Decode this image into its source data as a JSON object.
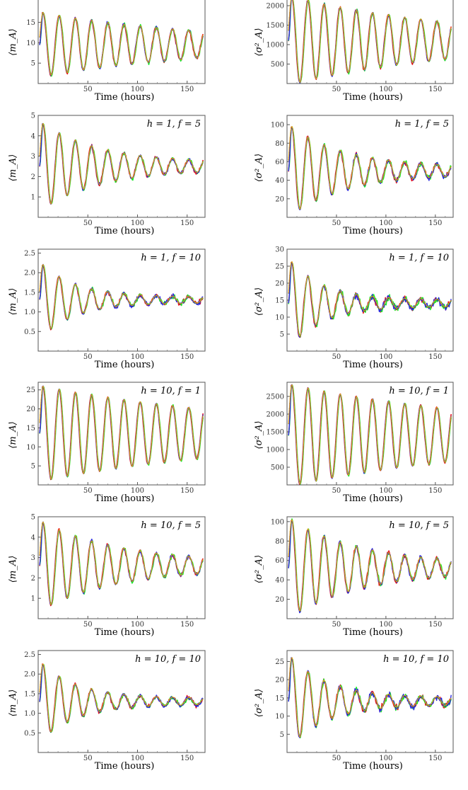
{
  "colors": {
    "red": "#e8141e",
    "green": "#1fe82e",
    "blue": "#2a2ae0",
    "black": "#111111",
    "orange": "#e0a21a"
  },
  "chart_data": [
    {
      "type": "line",
      "annotation": "",
      "xlabel": "Time (hours)",
      "ylabel": "⟨m_A⟩",
      "xlim": [
        0,
        168
      ],
      "ylim": [
        0,
        21
      ],
      "xticks": [
        50,
        100,
        150
      ],
      "yticks": [
        5,
        10,
        15,
        20
      ],
      "ytick_labels": [
        "5",
        "10",
        "15",
        "20"
      ],
      "mean": 9.5,
      "amp0": 7.5,
      "decay": 0.0062,
      "period": 16.3,
      "noise": 0.4,
      "series": [
        {
          "color": "red"
        },
        {
          "color": "green"
        },
        {
          "color": "blue"
        },
        {
          "color": "black"
        },
        {
          "color": "orange"
        }
      ]
    },
    {
      "type": "line",
      "annotation": "",
      "xlabel": "Time (hours)",
      "ylabel": "⟨σ²_A⟩",
      "xlim": [
        0,
        168
      ],
      "ylim": [
        0,
        2200
      ],
      "xticks": [
        50,
        100,
        150
      ],
      "yticks": [
        500,
        1000,
        1500,
        2000
      ],
      "ytick_labels": [
        "500",
        "1000",
        "1500",
        "2000"
      ],
      "mean": 1100,
      "amp0": 1080,
      "decay": 0.0062,
      "period": 16.3,
      "noise": 40,
      "series": [
        {
          "color": "red"
        },
        {
          "color": "green"
        },
        {
          "color": "blue"
        },
        {
          "color": "black"
        },
        {
          "color": "orange"
        }
      ]
    },
    {
      "type": "line",
      "annotation": "h = 1, f = 5",
      "xlabel": "Time (hours)",
      "ylabel": "⟨m_A⟩",
      "xlim": [
        0,
        168
      ],
      "ylim": [
        0,
        5
      ],
      "xticks": [
        50,
        100,
        150
      ],
      "yticks": [
        1,
        2,
        3,
        4,
        5
      ],
      "ytick_labels": [
        "1",
        "2",
        "3",
        "4",
        "5"
      ],
      "mean": 2.5,
      "amp0": 2.1,
      "decay": 0.017,
      "period": 16.3,
      "noise": 0.08,
      "series": [
        {
          "color": "red"
        },
        {
          "color": "green"
        },
        {
          "color": "blue"
        },
        {
          "color": "black"
        },
        {
          "color": "orange"
        }
      ]
    },
    {
      "type": "line",
      "annotation": "h = 1, f = 5",
      "xlabel": "Time (hours)",
      "ylabel": "⟨σ²_A⟩",
      "xlim": [
        0,
        168
      ],
      "ylim": [
        0,
        110
      ],
      "xticks": [
        50,
        100,
        150
      ],
      "yticks": [
        20,
        40,
        60,
        80,
        100
      ],
      "ytick_labels": [
        "20",
        "40",
        "60",
        "80",
        "100"
      ],
      "mean": 50,
      "amp0": 48,
      "decay": 0.018,
      "period": 16.3,
      "noise": 2.5,
      "series": [
        {
          "color": "red"
        },
        {
          "color": "green"
        },
        {
          "color": "blue"
        },
        {
          "color": "black"
        },
        {
          "color": "orange"
        }
      ]
    },
    {
      "type": "line",
      "annotation": "h = 1, f = 10",
      "xlabel": "Time (hours)",
      "ylabel": "⟨m_A⟩",
      "xlim": [
        0,
        168
      ],
      "ylim": [
        0,
        2.6
      ],
      "xticks": [
        50,
        100,
        150
      ],
      "yticks": [
        0.5,
        1.0,
        1.5,
        2.0,
        2.5
      ],
      "ytick_labels": [
        "0.5",
        "1.0",
        "1.5",
        "2.0",
        "2.5"
      ],
      "mean": 1.3,
      "amp0": 0.95,
      "decay": 0.028,
      "period": 16.3,
      "noise": 0.05,
      "series": [
        {
          "color": "red"
        },
        {
          "color": "green"
        },
        {
          "color": "blue"
        },
        {
          "color": "black"
        },
        {
          "color": "orange"
        }
      ]
    },
    {
      "type": "line",
      "annotation": "h = 1, f = 10",
      "xlabel": "Time (hours)",
      "ylabel": "⟨σ²_A⟩",
      "xlim": [
        0,
        168
      ],
      "ylim": [
        0,
        30
      ],
      "xticks": [
        50,
        100,
        150
      ],
      "yticks": [
        5,
        10,
        15,
        20,
        25,
        30
      ],
      "ytick_labels": [
        "5",
        "10",
        "15",
        "20",
        "25",
        "30"
      ],
      "mean": 14,
      "amp0": 13,
      "decay": 0.03,
      "period": 16.3,
      "noise": 0.9,
      "series": [
        {
          "color": "red"
        },
        {
          "color": "green"
        },
        {
          "color": "blue"
        },
        {
          "color": "black"
        },
        {
          "color": "orange"
        }
      ]
    },
    {
      "type": "line",
      "annotation": "h = 10, f = 1",
      "xlabel": "Time (hours)",
      "ylabel": "⟨m_A⟩",
      "xlim": [
        0,
        168
      ],
      "ylim": [
        0,
        27
      ],
      "xticks": [
        50,
        100,
        150
      ],
      "yticks": [
        5,
        10,
        15,
        20,
        25
      ],
      "ytick_labels": [
        "5",
        "10",
        "15",
        "20",
        "25"
      ],
      "mean": 13.5,
      "amp0": 11.8,
      "decay": 0.0045,
      "period": 16.3,
      "noise": 0.25,
      "series": [
        {
          "color": "red"
        },
        {
          "color": "green"
        },
        {
          "color": "blue"
        },
        {
          "color": "black"
        },
        {
          "color": "orange"
        }
      ]
    },
    {
      "type": "line",
      "annotation": "h = 10, f = 1",
      "xlabel": "Time (hours)",
      "ylabel": "⟨σ²_A⟩",
      "xlim": [
        0,
        168
      ],
      "ylim": [
        0,
        2900
      ],
      "xticks": [
        50,
        100,
        150
      ],
      "yticks": [
        500,
        1000,
        1500,
        2000,
        2500
      ],
      "ytick_labels": [
        "500",
        "1000",
        "1500",
        "2000",
        "2500"
      ],
      "mean": 1400,
      "amp0": 1350,
      "decay": 0.0045,
      "period": 16.3,
      "noise": 30,
      "series": [
        {
          "color": "red"
        },
        {
          "color": "green"
        },
        {
          "color": "blue"
        },
        {
          "color": "black"
        },
        {
          "color": "orange"
        }
      ]
    },
    {
      "type": "line",
      "annotation": "h = 10, f = 5",
      "xlabel": "Time (hours)",
      "ylabel": "⟨m_A⟩",
      "xlim": [
        0,
        168
      ],
      "ylim": [
        0,
        5
      ],
      "xticks": [
        50,
        100,
        150
      ],
      "yticks": [
        1,
        2,
        3,
        4,
        5
      ],
      "ytick_labels": [
        "1",
        "2",
        "3",
        "4",
        "5"
      ],
      "mean": 2.6,
      "amp0": 2.1,
      "decay": 0.013,
      "period": 16.3,
      "noise": 0.09,
      "series": [
        {
          "color": "red"
        },
        {
          "color": "green"
        },
        {
          "color": "blue"
        },
        {
          "color": "black"
        },
        {
          "color": "orange"
        }
      ]
    },
    {
      "type": "line",
      "annotation": "h = 10, f = 5",
      "xlabel": "Time (hours)",
      "ylabel": "⟨σ²_A⟩",
      "xlim": [
        0,
        168
      ],
      "ylim": [
        0,
        105
      ],
      "xticks": [
        50,
        100,
        150
      ],
      "yticks": [
        20,
        40,
        60,
        80,
        100
      ],
      "ytick_labels": [
        "20",
        "40",
        "60",
        "80",
        "100"
      ],
      "mean": 52,
      "amp0": 49,
      "decay": 0.014,
      "period": 16.3,
      "noise": 2.5,
      "series": [
        {
          "color": "red"
        },
        {
          "color": "green"
        },
        {
          "color": "blue"
        },
        {
          "color": "black"
        },
        {
          "color": "orange"
        }
      ]
    },
    {
      "type": "line",
      "annotation": "h = 10, f = 10",
      "xlabel": "Time (hours)",
      "ylabel": "⟨m_A⟩",
      "xlim": [
        0,
        168
      ],
      "ylim": [
        0,
        2.6
      ],
      "xticks": [
        50,
        100,
        150
      ],
      "yticks": [
        0.5,
        1.0,
        1.5,
        2.0,
        2.5
      ],
      "ytick_labels": [
        "0.5",
        "1.0",
        "1.5",
        "2.0",
        "2.5"
      ],
      "mean": 1.3,
      "amp0": 1.0,
      "decay": 0.027,
      "period": 16.3,
      "noise": 0.05,
      "series": [
        {
          "color": "red"
        },
        {
          "color": "green"
        },
        {
          "color": "blue"
        },
        {
          "color": "black"
        },
        {
          "color": "orange"
        }
      ]
    },
    {
      "type": "line",
      "annotation": "h = 10, f = 10",
      "xlabel": "Time (hours)",
      "ylabel": "⟨σ²_A⟩",
      "xlim": [
        0,
        168
      ],
      "ylim": [
        0,
        28
      ],
      "xticks": [
        50,
        100,
        150
      ],
      "yticks": [
        5,
        10,
        15,
        20,
        25
      ],
      "ytick_labels": [
        "5",
        "10",
        "15",
        "20",
        "25"
      ],
      "mean": 14,
      "amp0": 12.5,
      "decay": 0.026,
      "period": 16.3,
      "noise": 0.8,
      "series": [
        {
          "color": "red"
        },
        {
          "color": "green"
        },
        {
          "color": "blue"
        },
        {
          "color": "black"
        },
        {
          "color": "orange"
        }
      ]
    }
  ]
}
